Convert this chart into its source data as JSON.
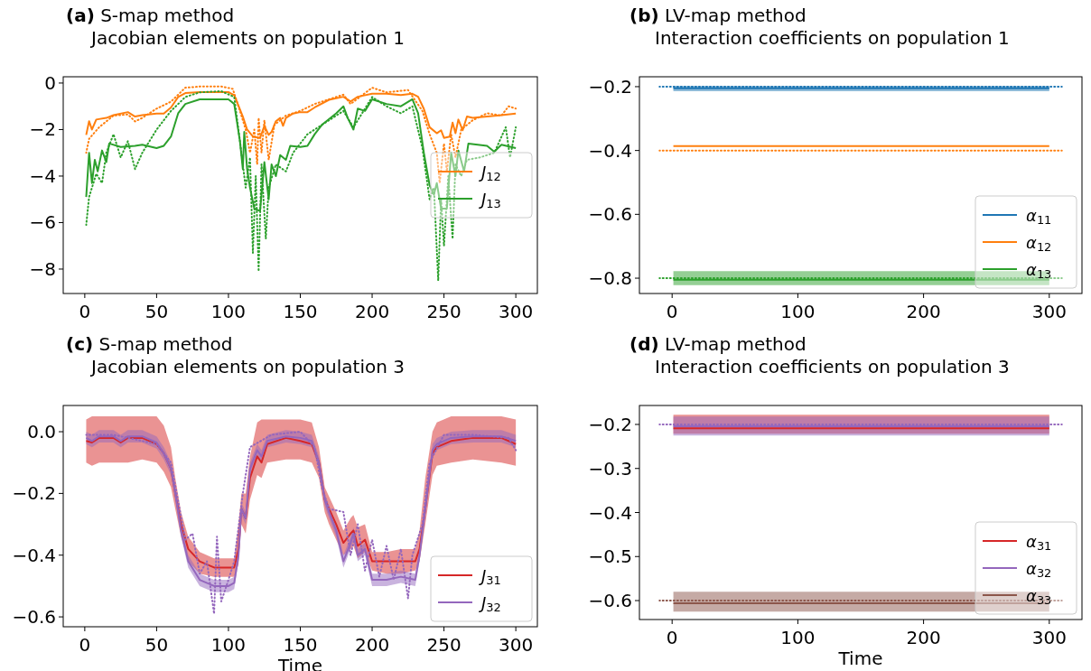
{
  "chart_data": [
    {
      "type": "line",
      "title": "(a)  S-map method",
      "subtitle": "Jacobian elements on population 1",
      "xlim": [
        -15,
        315
      ],
      "ylim": [
        -9.05,
        0.27
      ],
      "xticks": [
        0,
        50,
        100,
        150,
        200,
        250,
        300
      ],
      "yticks": [
        {
          "value": 0,
          "label": "0"
        },
        {
          "value": -2,
          "label": "−2"
        },
        {
          "value": -4,
          "label": "−4"
        },
        {
          "value": -6,
          "label": "−6"
        },
        {
          "value": -8,
          "label": "−8"
        }
      ],
      "legend": "right",
      "series": [
        {
          "name": "J$_{12}$",
          "color": "#ff7f0e",
          "x": [
            1,
            3,
            5,
            8,
            15,
            20,
            30,
            35,
            40,
            50,
            55,
            60,
            65,
            70,
            80,
            90,
            100,
            104,
            107,
            110,
            113,
            117,
            122,
            125,
            128,
            130,
            133,
            136,
            138,
            140,
            145,
            150,
            155,
            160,
            170,
            180,
            185,
            190,
            200,
            210,
            220,
            228,
            232,
            236,
            240,
            245,
            248,
            250,
            254,
            256,
            258,
            260,
            263,
            266,
            270,
            280,
            290,
            300
          ],
          "values": [
            -2.23,
            -1.64,
            -2.0,
            -1.57,
            -1.5,
            -1.38,
            -1.25,
            -1.44,
            -1.38,
            -1.31,
            -1.31,
            -1.05,
            -0.6,
            -0.43,
            -0.39,
            -0.39,
            -0.39,
            -0.52,
            -0.98,
            -1.44,
            -2.0,
            -2.3,
            -2.36,
            -1.84,
            -2.23,
            -2.1,
            -1.64,
            -1.5,
            -1.84,
            -1.5,
            -1.31,
            -1.25,
            -1.25,
            -1.05,
            -0.72,
            -0.59,
            -0.79,
            -0.59,
            -0.46,
            -0.46,
            -0.52,
            -0.46,
            -0.59,
            -1.11,
            -1.9,
            -2.16,
            -2.03,
            -2.36,
            -2.3,
            -1.7,
            -2.16,
            -1.57,
            -2.03,
            -1.44,
            -1.5,
            -1.44,
            -1.38,
            -1.31
          ]
        },
        {
          "name": "J$_{13}$",
          "color": "#2ca02c",
          "x": [
            1,
            3,
            5,
            7,
            9,
            12,
            15,
            17,
            25,
            35,
            40,
            50,
            55,
            60,
            65,
            70,
            80,
            100,
            104,
            108,
            110,
            111,
            113,
            115,
            118,
            122,
            125,
            128,
            130,
            133,
            136,
            140,
            143,
            150,
            155,
            160,
            165,
            175,
            180,
            183,
            187,
            190,
            195,
            200,
            210,
            220,
            228,
            232,
            236,
            240,
            243,
            245,
            248,
            252,
            255,
            258,
            260,
            264,
            267,
            280,
            285,
            290,
            300
          ],
          "values": [
            -4.9,
            -3.0,
            -4.3,
            -3.3,
            -3.8,
            -2.9,
            -3.4,
            -2.6,
            -2.75,
            -2.7,
            -2.65,
            -2.8,
            -2.7,
            -2.3,
            -1.3,
            -0.9,
            -0.7,
            -0.7,
            -0.9,
            -2.5,
            -3.7,
            -2.1,
            -3.7,
            -4.5,
            -5.4,
            -5.5,
            -3.4,
            -5.0,
            -3.5,
            -4.0,
            -3.1,
            -3.3,
            -2.7,
            -2.75,
            -2.7,
            -2.2,
            -1.8,
            -1.3,
            -1.0,
            -1.5,
            -2.0,
            -1.1,
            -1.2,
            -0.7,
            -0.9,
            -1.0,
            -0.7,
            -1.3,
            -3.0,
            -4.4,
            -4.8,
            -4.3,
            -5.4,
            -5.4,
            -3.0,
            -4.0,
            -2.9,
            -3.8,
            -2.6,
            -2.7,
            -2.95,
            -2.65,
            -2.8
          ]
        },
        {
          "color": "#ff7f0e",
          "line_style": "dotted",
          "x": [
            1,
            3,
            10,
            20,
            30,
            35,
            40,
            50,
            60,
            70,
            80,
            95,
            103,
            108,
            112,
            115,
            118,
            120,
            121,
            123,
            125,
            128,
            132,
            140,
            150,
            160,
            180,
            185,
            200,
            210,
            225,
            235,
            240,
            245,
            247,
            250,
            252,
            255,
            258,
            262,
            270,
            280,
            290,
            295,
            300
          ],
          "values": [
            -3.0,
            -2.4,
            -1.9,
            -1.4,
            -1.35,
            -1.65,
            -1.5,
            -1.1,
            -0.8,
            -0.2,
            -0.15,
            -0.15,
            -0.25,
            -1.2,
            -2.0,
            -3.0,
            -2.0,
            -3.5,
            -1.5,
            -3.0,
            -1.6,
            -3.3,
            -1.8,
            -1.4,
            -1.2,
            -0.9,
            -0.5,
            -0.9,
            -0.2,
            -0.4,
            -0.3,
            -1.2,
            -2.2,
            -3.0,
            -4.3,
            -2.6,
            -3.8,
            -2.2,
            -3.2,
            -2.0,
            -1.6,
            -1.3,
            -1.4,
            -1.0,
            -1.1
          ]
        },
        {
          "color": "#2ca02c",
          "line_style": "dotted",
          "x": [
            1,
            3,
            8,
            12,
            15,
            20,
            25,
            30,
            35,
            40,
            50,
            60,
            70,
            80,
            95,
            104,
            108,
            112,
            115,
            117,
            119,
            121,
            123,
            126,
            128,
            133,
            140,
            145,
            155,
            165,
            180,
            187,
            200,
            210,
            220,
            228,
            235,
            240,
            243,
            246,
            248,
            250,
            253,
            256,
            258,
            262,
            266,
            275,
            285,
            293,
            296,
            300
          ],
          "values": [
            -6.1,
            -4.9,
            -3.9,
            -4.3,
            -3.0,
            -2.2,
            -3.2,
            -2.5,
            -3.7,
            -3.0,
            -2.0,
            -1.2,
            -0.6,
            -0.4,
            -0.35,
            -0.6,
            -2.5,
            -4.5,
            -3.2,
            -7.3,
            -4.0,
            -8.1,
            -3.5,
            -6.7,
            -4.5,
            -3.5,
            -3.8,
            -3.0,
            -2.2,
            -1.8,
            -1.2,
            -1.9,
            -0.6,
            -1.0,
            -1.3,
            -1.0,
            -2.8,
            -5.0,
            -4.5,
            -8.5,
            -5.0,
            -7.0,
            -4.0,
            -6.7,
            -3.5,
            -4.0,
            -3.3,
            -3.2,
            -3.0,
            -1.9,
            -3.2,
            -1.9
          ]
        }
      ]
    },
    {
      "type": "line",
      "title": "(b)  LV-map method",
      "subtitle": "Interaction coefficients on population 1",
      "xlim": [
        -26,
        326
      ],
      "ylim": [
        -0.848,
        -0.169
      ],
      "xticks": [
        0,
        100,
        200,
        300
      ],
      "yticks": [
        {
          "value": -0.2,
          "label": "−0.2"
        },
        {
          "value": -0.4,
          "label": "−0.4"
        },
        {
          "value": -0.6,
          "label": "−0.6"
        },
        {
          "value": -0.8,
          "label": "−0.8"
        }
      ],
      "legend": "bottom right",
      "series": [
        {
          "name": "α$_{11}$",
          "color": "#1f77b4",
          "x": [
            1,
            100,
            200,
            300
          ],
          "values": [
            -0.205,
            -0.205,
            -0.205,
            -0.205
          ],
          "lower": [
            -0.214,
            -0.214,
            -0.214,
            -0.214
          ],
          "upper": [
            -0.198,
            -0.198,
            -0.198,
            -0.198
          ]
        },
        {
          "name": "α$_{12}$",
          "color": "#ff7f0e",
          "x": [
            1,
            100,
            200,
            300
          ],
          "values": [
            -0.386,
            -0.386,
            -0.386,
            -0.386
          ]
        },
        {
          "name": "α$_{13}$",
          "color": "#2ca02c",
          "x": [
            1,
            100,
            200,
            300
          ],
          "values": [
            -0.805,
            -0.805,
            -0.805,
            -0.805
          ],
          "lower": [
            -0.822,
            -0.822,
            -0.822,
            -0.822
          ],
          "upper": [
            -0.778,
            -0.778,
            -0.778,
            -0.778
          ]
        },
        {
          "color": "#1f77b4",
          "line_style": "dotted",
          "x": [
            -10,
            310
          ],
          "values": [
            -0.2,
            -0.2
          ]
        },
        {
          "color": "#ff7f0e",
          "line_style": "dotted",
          "x": [
            -10,
            310
          ],
          "values": [
            -0.4,
            -0.4
          ]
        },
        {
          "color": "#2ca02c",
          "line_style": "dotted",
          "x": [
            -10,
            310
          ],
          "values": [
            -0.8,
            -0.8
          ]
        }
      ]
    },
    {
      "type": "line",
      "title": "(c)  S-map method",
      "subtitle": "Jacobian elements on population 3",
      "xlabel": "Time",
      "xlim": [
        -15,
        315
      ],
      "ylim": [
        -0.632,
        0.085
      ],
      "xticks": [
        0,
        50,
        100,
        150,
        200,
        250,
        300
      ],
      "yticks": [
        {
          "value": 0,
          "label": "0.0"
        },
        {
          "value": -0.2,
          "label": "−0.2"
        },
        {
          "value": -0.4,
          "label": "−0.4"
        },
        {
          "value": -0.6,
          "label": "−0.6"
        }
      ],
      "legend": "bottom right",
      "series": [
        {
          "name": "J$_{31}$",
          "color": "#d62728",
          "x": [
            1,
            5,
            10,
            20,
            25,
            30,
            40,
            50,
            55,
            60,
            63,
            67,
            72,
            80,
            90,
            100,
            104,
            107,
            109,
            112,
            115,
            120,
            123,
            127,
            140,
            150,
            158,
            163,
            167,
            170,
            175,
            180,
            185,
            187,
            190,
            195,
            200,
            210,
            220,
            230,
            233,
            237,
            242,
            245,
            255,
            270,
            290,
            300
          ],
          "values": [
            -0.03,
            -0.035,
            -0.02,
            -0.02,
            -0.035,
            -0.02,
            -0.02,
            -0.04,
            -0.07,
            -0.12,
            -0.2,
            -0.3,
            -0.38,
            -0.42,
            -0.44,
            -0.44,
            -0.44,
            -0.38,
            -0.25,
            -0.28,
            -0.15,
            -0.08,
            -0.1,
            -0.04,
            -0.02,
            -0.03,
            -0.04,
            -0.1,
            -0.22,
            -0.25,
            -0.3,
            -0.36,
            -0.33,
            -0.32,
            -0.37,
            -0.35,
            -0.42,
            -0.42,
            -0.42,
            -0.42,
            -0.38,
            -0.25,
            -0.07,
            -0.05,
            -0.03,
            -0.02,
            -0.02,
            -0.04
          ],
          "lower": [
            -0.1,
            -0.11,
            -0.1,
            -0.1,
            -0.1,
            -0.1,
            -0.09,
            -0.1,
            -0.13,
            -0.18,
            -0.25,
            -0.34,
            -0.42,
            -0.46,
            -0.47,
            -0.47,
            -0.47,
            -0.43,
            -0.3,
            -0.33,
            -0.22,
            -0.14,
            -0.15,
            -0.1,
            -0.09,
            -0.09,
            -0.1,
            -0.15,
            -0.26,
            -0.3,
            -0.35,
            -0.4,
            -0.38,
            -0.37,
            -0.41,
            -0.39,
            -0.45,
            -0.46,
            -0.46,
            -0.45,
            -0.42,
            -0.3,
            -0.14,
            -0.11,
            -0.1,
            -0.09,
            -0.1,
            -0.11
          ],
          "upper": [
            0.04,
            0.05,
            0.05,
            0.05,
            0.05,
            0.05,
            0.05,
            0.05,
            0.02,
            -0.05,
            -0.15,
            -0.26,
            -0.34,
            -0.39,
            -0.41,
            -0.41,
            -0.41,
            -0.3,
            -0.2,
            -0.2,
            -0.08,
            0.03,
            0.04,
            0.04,
            0.04,
            0.04,
            0.03,
            -0.05,
            -0.18,
            -0.21,
            -0.26,
            -0.32,
            -0.28,
            -0.27,
            -0.31,
            -0.3,
            -0.39,
            -0.39,
            -0.38,
            -0.38,
            -0.32,
            -0.15,
            0.0,
            0.03,
            0.05,
            0.05,
            0.05,
            0.04
          ]
        },
        {
          "name": "J$_{32}$",
          "color": "#9467bd",
          "x": [
            1,
            5,
            10,
            20,
            25,
            30,
            40,
            50,
            55,
            60,
            63,
            67,
            72,
            80,
            90,
            100,
            104,
            107,
            109,
            112,
            115,
            120,
            123,
            127,
            140,
            150,
            158,
            163,
            167,
            170,
            175,
            180,
            185,
            187,
            190,
            195,
            200,
            210,
            220,
            230,
            233,
            237,
            242,
            245,
            255,
            270,
            290,
            300
          ],
          "values": [
            -0.02,
            -0.03,
            -0.015,
            -0.015,
            -0.03,
            -0.015,
            -0.015,
            -0.035,
            -0.07,
            -0.12,
            -0.2,
            -0.32,
            -0.42,
            -0.48,
            -0.5,
            -0.5,
            -0.49,
            -0.4,
            -0.25,
            -0.28,
            -0.12,
            -0.06,
            -0.08,
            -0.03,
            -0.015,
            -0.02,
            -0.03,
            -0.1,
            -0.22,
            -0.26,
            -0.32,
            -0.42,
            -0.36,
            -0.33,
            -0.4,
            -0.38,
            -0.48,
            -0.48,
            -0.47,
            -0.48,
            -0.4,
            -0.25,
            -0.06,
            -0.04,
            -0.02,
            -0.015,
            -0.015,
            -0.03
          ],
          "lower": [
            -0.04,
            -0.05,
            -0.035,
            -0.035,
            -0.05,
            -0.035,
            -0.035,
            -0.055,
            -0.09,
            -0.14,
            -0.22,
            -0.34,
            -0.44,
            -0.5,
            -0.52,
            -0.52,
            -0.51,
            -0.42,
            -0.27,
            -0.3,
            -0.14,
            -0.08,
            -0.1,
            -0.05,
            -0.035,
            -0.04,
            -0.05,
            -0.12,
            -0.24,
            -0.28,
            -0.34,
            -0.44,
            -0.38,
            -0.35,
            -0.42,
            -0.4,
            -0.5,
            -0.5,
            -0.49,
            -0.5,
            -0.42,
            -0.27,
            -0.08,
            -0.06,
            -0.04,
            -0.035,
            -0.035,
            -0.05
          ],
          "upper": [
            0.0,
            -0.01,
            0.005,
            0.005,
            -0.01,
            0.005,
            0.005,
            -0.015,
            -0.05,
            -0.1,
            -0.18,
            -0.3,
            -0.4,
            -0.46,
            -0.48,
            -0.48,
            -0.47,
            -0.38,
            -0.23,
            -0.26,
            -0.1,
            -0.04,
            -0.06,
            -0.01,
            0.005,
            0.0,
            -0.01,
            -0.08,
            -0.2,
            -0.24,
            -0.3,
            -0.4,
            -0.34,
            -0.31,
            -0.38,
            -0.36,
            -0.46,
            -0.46,
            -0.45,
            -0.46,
            -0.38,
            -0.23,
            -0.04,
            -0.02,
            0.0,
            0.005,
            0.005,
            -0.01
          ]
        },
        {
          "color": "#9467bd",
          "line_style": "dotted",
          "x": [
            1,
            20,
            50,
            60,
            70,
            75,
            80,
            85,
            90,
            92,
            95,
            100,
            104,
            110,
            115,
            130,
            150,
            160,
            165,
            170,
            180,
            185,
            190,
            195,
            200,
            205,
            210,
            215,
            220,
            225,
            228,
            235,
            240,
            250,
            270,
            295,
            300
          ],
          "values": [
            -0.01,
            -0.01,
            -0.04,
            -0.1,
            -0.35,
            -0.33,
            -0.46,
            -0.42,
            -0.59,
            -0.34,
            -0.55,
            -0.48,
            -0.42,
            -0.2,
            -0.05,
            -0.01,
            0.0,
            -0.05,
            -0.18,
            -0.25,
            -0.26,
            -0.4,
            -0.3,
            -0.45,
            -0.35,
            -0.47,
            -0.37,
            -0.48,
            -0.38,
            -0.54,
            -0.4,
            -0.3,
            -0.1,
            -0.01,
            -0.01,
            -0.02,
            -0.06
          ]
        }
      ]
    },
    {
      "type": "line",
      "title": "(d)  LV-map method",
      "subtitle": "Interaction coefficients on population 3",
      "xlabel": "Time",
      "xlim": [
        -26,
        326
      ],
      "ylim": [
        -0.643,
        -0.157
      ],
      "xticks": [
        0,
        100,
        200,
        300
      ],
      "yticks": [
        {
          "value": -0.2,
          "label": "−0.2"
        },
        {
          "value": -0.3,
          "label": "−0.3"
        },
        {
          "value": -0.4,
          "label": "−0.4"
        },
        {
          "value": -0.5,
          "label": "−0.5"
        },
        {
          "value": -0.6,
          "label": "−0.6"
        }
      ],
      "legend": "bottom right",
      "series": [
        {
          "name": "α$_{31}$",
          "color": "#d62728",
          "x": [
            1,
            100,
            200,
            300
          ],
          "values": [
            -0.209,
            -0.209,
            -0.209,
            -0.209
          ],
          "lower": [
            -0.221,
            -0.221,
            -0.221,
            -0.221
          ],
          "upper": [
            -0.178,
            -0.178,
            -0.178,
            -0.178
          ]
        },
        {
          "name": "α$_{32}$",
          "color": "#9467bd",
          "x": [
            1,
            100,
            200,
            300
          ],
          "values": [
            -0.204,
            -0.204,
            -0.204,
            -0.204
          ],
          "lower": [
            -0.225,
            -0.225,
            -0.225,
            -0.225
          ],
          "upper": [
            -0.182,
            -0.182,
            -0.182,
            -0.182
          ]
        },
        {
          "name": "α$_{33}$",
          "color": "#8c564b",
          "x": [
            1,
            100,
            200,
            300
          ],
          "values": [
            -0.606,
            -0.606,
            -0.606,
            -0.606
          ],
          "lower": [
            -0.625,
            -0.625,
            -0.625,
            -0.625
          ],
          "upper": [
            -0.58,
            -0.58,
            -0.58,
            -0.58
          ]
        },
        {
          "color": "#9467bd",
          "line_style": "dotted",
          "x": [
            -10,
            310
          ],
          "values": [
            -0.2,
            -0.2
          ]
        },
        {
          "color": "#8c564b",
          "line_style": "dotted",
          "x": [
            -10,
            310
          ],
          "values": [
            -0.6,
            -0.6
          ]
        }
      ]
    }
  ]
}
